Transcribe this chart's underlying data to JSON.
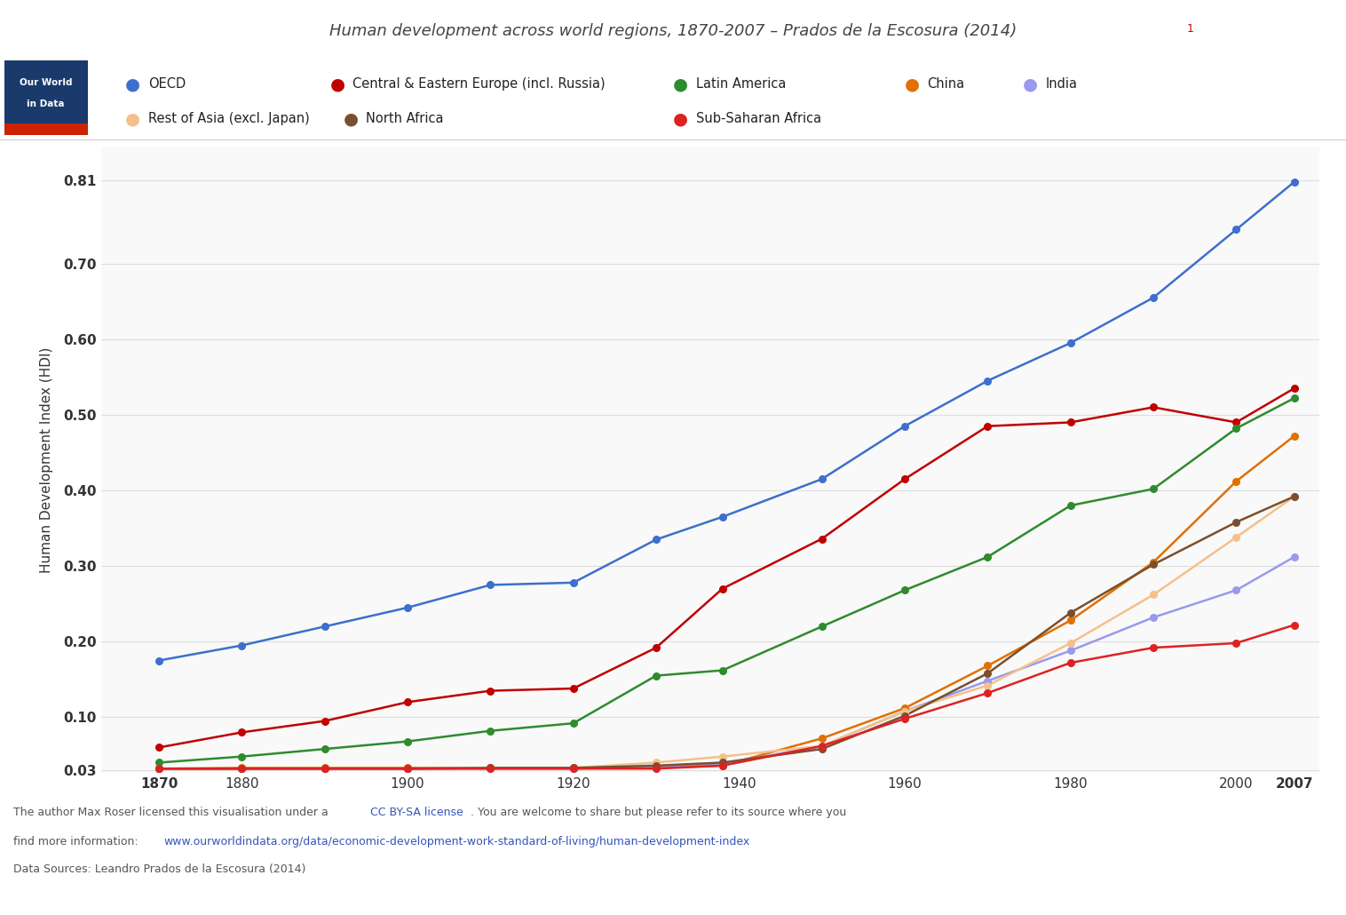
{
  "title": "Human development across world regions, 1870-2007 – Prados de la Escosura (2014)",
  "title_superscript": "1",
  "ylabel": "Human Development Index (HDI)",
  "background_color": "#ffffff",
  "plot_background_color": "#f9f9f9",
  "series": [
    {
      "name": "OECD",
      "color": "#3d6fcc",
      "years": [
        1870,
        1880,
        1890,
        1900,
        1910,
        1920,
        1930,
        1938,
        1950,
        1960,
        1970,
        1980,
        1990,
        2000,
        2007
      ],
      "values": [
        0.175,
        0.195,
        0.22,
        0.245,
        0.275,
        0.278,
        0.335,
        0.365,
        0.415,
        0.485,
        0.545,
        0.595,
        0.655,
        0.745,
        0.808
      ]
    },
    {
      "name": "Central & Eastern Europe (incl. Russia)",
      "color": "#c00000",
      "years": [
        1870,
        1880,
        1890,
        1900,
        1910,
        1920,
        1930,
        1938,
        1950,
        1960,
        1970,
        1980,
        1990,
        2000,
        2007
      ],
      "values": [
        0.06,
        0.08,
        0.095,
        0.12,
        0.135,
        0.138,
        0.192,
        0.27,
        0.336,
        0.415,
        0.485,
        0.49,
        0.51,
        0.49,
        0.535
      ]
    },
    {
      "name": "Latin America",
      "color": "#2e8b2e",
      "years": [
        1870,
        1880,
        1890,
        1900,
        1910,
        1920,
        1930,
        1938,
        1950,
        1960,
        1970,
        1980,
        1990,
        2000,
        2007
      ],
      "values": [
        0.04,
        0.048,
        0.058,
        0.068,
        0.082,
        0.092,
        0.155,
        0.162,
        0.22,
        0.268,
        0.312,
        0.38,
        0.402,
        0.482,
        0.522
      ]
    },
    {
      "name": "China",
      "color": "#e07000",
      "years": [
        1870,
        1880,
        1890,
        1900,
        1910,
        1920,
        1930,
        1938,
        1950,
        1960,
        1970,
        1980,
        1990,
        2000,
        2007
      ],
      "values": [
        0.032,
        0.033,
        0.033,
        0.033,
        0.033,
        0.033,
        0.033,
        0.036,
        0.072,
        0.112,
        0.168,
        0.228,
        0.305,
        0.412,
        0.472
      ]
    },
    {
      "name": "India",
      "color": "#9999ee",
      "years": [
        1870,
        1880,
        1890,
        1900,
        1910,
        1920,
        1930,
        1938,
        1950,
        1960,
        1970,
        1980,
        1990,
        2000,
        2007
      ],
      "values": [
        0.032,
        0.032,
        0.032,
        0.032,
        0.032,
        0.032,
        0.035,
        0.038,
        0.062,
        0.108,
        0.148,
        0.188,
        0.232,
        0.268,
        0.312
      ]
    },
    {
      "name": "Rest of Asia (excl. Japan)",
      "color": "#f5c08a",
      "years": [
        1870,
        1880,
        1890,
        1900,
        1910,
        1920,
        1930,
        1938,
        1950,
        1960,
        1970,
        1980,
        1990,
        2000,
        2007
      ],
      "values": [
        0.032,
        0.032,
        0.032,
        0.032,
        0.033,
        0.033,
        0.04,
        0.048,
        0.062,
        0.108,
        0.142,
        0.198,
        0.262,
        0.338,
        0.392
      ]
    },
    {
      "name": "North Africa",
      "color": "#7b4f2e",
      "years": [
        1870,
        1880,
        1890,
        1900,
        1910,
        1920,
        1930,
        1938,
        1950,
        1960,
        1970,
        1980,
        1990,
        2000,
        2007
      ],
      "values": [
        0.032,
        0.032,
        0.032,
        0.032,
        0.033,
        0.033,
        0.036,
        0.04,
        0.058,
        0.102,
        0.158,
        0.238,
        0.302,
        0.358,
        0.392
      ]
    },
    {
      "name": "Sub-Saharan Africa",
      "color": "#dd2222",
      "years": [
        1870,
        1880,
        1890,
        1900,
        1910,
        1920,
        1930,
        1938,
        1950,
        1960,
        1970,
        1980,
        1990,
        2000,
        2007
      ],
      "values": [
        0.032,
        0.032,
        0.032,
        0.032,
        0.032,
        0.032,
        0.032,
        0.036,
        0.062,
        0.098,
        0.132,
        0.172,
        0.192,
        0.198,
        0.222
      ]
    }
  ],
  "yticks": [
    0.03,
    0.1,
    0.2,
    0.3,
    0.4,
    0.5,
    0.6,
    0.7,
    0.81
  ],
  "ytick_labels": [
    "0.03",
    "0.10",
    "0.20",
    "0.30",
    "0.40",
    "0.50",
    "0.60",
    "0.70",
    "0.81"
  ],
  "xticks": [
    1870,
    1880,
    1900,
    1920,
    1940,
    1960,
    1980,
    2000,
    2007
  ],
  "xtick_bold": [
    1870,
    2007
  ],
  "xlim": [
    1863,
    2010
  ],
  "ylim": [
    0.026,
    0.855
  ],
  "logo_bg": "#1a3a6b",
  "logo_red": "#cc2200",
  "footnote_pre": "The author Max Roser licensed this visualisation under a ",
  "footnote_link1": "CC BY-SA license",
  "footnote_post": ". You are welcome to share but please refer to its source where you",
  "footnote_line2_pre": "find more information:  ",
  "footnote_link2": "www.ourworldindata.org/data/economic-development-work-standard-of-living/human-development-index",
  "footnote_line3": "Data Sources: Leandro Prados de la Escosura (2014)",
  "link_color": "#3355bb",
  "text_color": "#555555",
  "grid_color": "#dddddd",
  "legend_row1": [
    "OECD",
    "Central & Eastern Europe (incl. Russia)",
    "Latin America",
    "China",
    "India"
  ],
  "legend_row2": [
    "Rest of Asia (excl. Japan)",
    "North Africa",
    "Sub-Saharan Africa"
  ],
  "legend_colors_row1": [
    "#3d6fcc",
    "#c00000",
    "#2e8b2e",
    "#e07000",
    "#9999ee"
  ],
  "legend_colors_row2": [
    "#f5c08a",
    "#7b4f2e",
    "#dd2222"
  ]
}
